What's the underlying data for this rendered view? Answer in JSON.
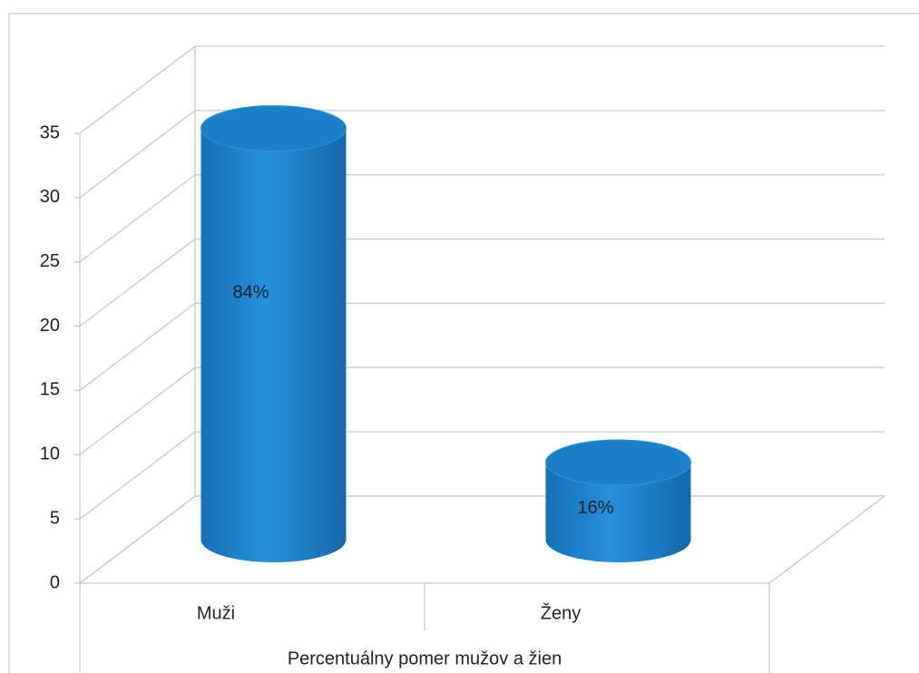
{
  "chart_data": {
    "type": "bar3d-cylinder",
    "x_label": "Percentuálny pomer mužov a žien",
    "categories": [
      "Muži",
      "Ženy"
    ],
    "values": [
      32,
      6
    ],
    "annotations": [
      "84%",
      "16%"
    ],
    "color": "#1b7fc9",
    "ylim": [
      0,
      35
    ],
    "yticks": [
      0,
      5,
      10,
      15,
      20,
      25,
      30,
      35
    ],
    "grid": true
  }
}
